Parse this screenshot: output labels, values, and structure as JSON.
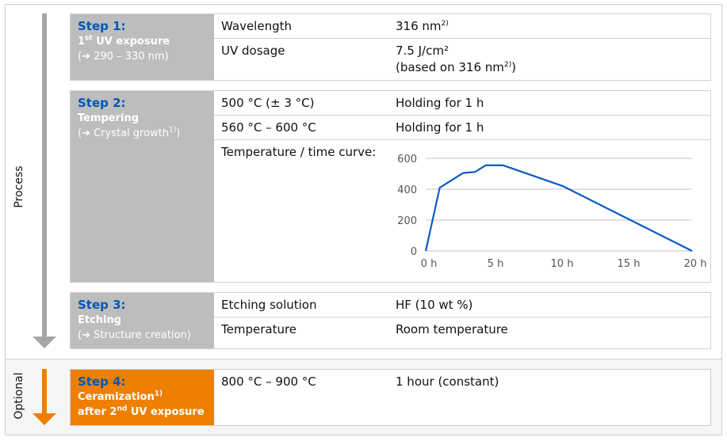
{
  "sections": {
    "process": "Process",
    "optional": "Optional"
  },
  "colors": {
    "accent_blue": "#0057b8",
    "step_gray": "#bdbdbd",
    "optional_orange": "#ee7f00",
    "curve": "#0a5bc4"
  },
  "steps": [
    {
      "title": "Step 1:",
      "line1": "1",
      "line1_sup": "st",
      "line1_rest": " UV exposure",
      "line2": "(➔ 290 – 330 nm)",
      "rows": [
        {
          "k": "Wavelength",
          "v": "316 nm",
          "v_sup": "2)"
        },
        {
          "k": "UV dosage",
          "v": "7.5 J/cm²",
          "v2": "(based on 316 nm",
          "v2_sup": "2)",
          "v2_end": ")"
        }
      ]
    },
    {
      "title": "Step 2:",
      "line1": "Tempering",
      "line2": "(➔ Crystal growth",
      "line2_sup": "1)",
      "line2_end": ")",
      "rows": [
        {
          "k": "500 °C (± 3 °C)",
          "v": "Holding for 1 h"
        },
        {
          "k": "560 °C – 600 °C",
          "v": "Holding for 1 h"
        },
        {
          "k": "Temperature / time curve:"
        }
      ]
    },
    {
      "title": "Step 3:",
      "line1": "Etching",
      "line2": "(➔ Structure creation)",
      "rows": [
        {
          "k": "Etching solution",
          "v": "HF (10 wt %)"
        },
        {
          "k": "Temperature",
          "v": "Room temperature"
        }
      ]
    },
    {
      "title": "Step 4:",
      "line1": "Ceramization",
      "line1_sup": "1)",
      "line2": "after 2",
      "line2_sup": "nd",
      "line2_end": " UV exposure",
      "rows": [
        {
          "k": "800 °C – 900 °C",
          "v": "1 hour (constant)"
        }
      ]
    }
  ],
  "chart_data": {
    "type": "line",
    "x": [
      0,
      1.05,
      2.8,
      3.7,
      4.5,
      5.8,
      10.3,
      20
    ],
    "y": [
      0,
      410,
      505,
      512,
      555,
      555,
      420,
      0
    ],
    "xticks": [
      "0 h",
      "5 h",
      "10 h",
      "15 h",
      "20 h"
    ],
    "xtick_values": [
      0,
      5,
      10,
      15,
      20
    ],
    "yticks": [
      "0",
      "200",
      "400",
      "600"
    ],
    "ytick_values": [
      0,
      200,
      400,
      600
    ],
    "xlim": [
      0,
      20
    ],
    "ylim": [
      0,
      600
    ],
    "grid": "horizontal"
  }
}
